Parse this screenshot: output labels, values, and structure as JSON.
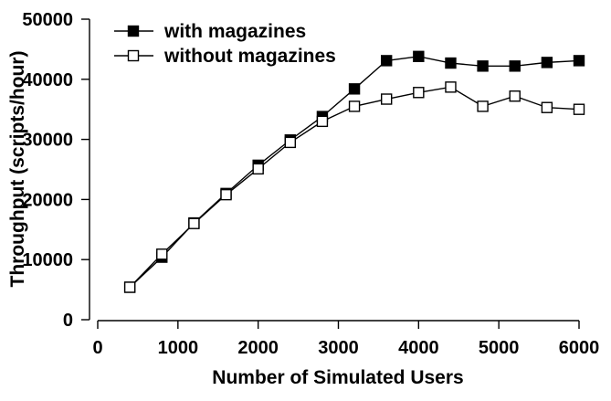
{
  "chart_data": {
    "type": "line",
    "xlabel": "Number of Simulated Users",
    "ylabel": "Throughput (scripts/hour)",
    "xlim": [
      0,
      6000
    ],
    "ylim": [
      0,
      50000
    ],
    "xticks": [
      "0",
      "1000",
      "2000",
      "3000",
      "4000",
      "5000",
      "6000"
    ],
    "yticks": [
      "0",
      "10000",
      "20000",
      "30000",
      "40000",
      "50000"
    ],
    "grid": false,
    "legend_position": "top-left",
    "series": [
      {
        "name": "with magazines",
        "marker": "filled-square",
        "color": "#000000",
        "x": [
          400,
          800,
          1200,
          1600,
          2000,
          2400,
          2800,
          3200,
          3600,
          4000,
          4400,
          4800,
          5200,
          5600,
          6000
        ],
        "y": [
          5400,
          10400,
          16100,
          21000,
          25700,
          29900,
          33800,
          38400,
          43100,
          43800,
          42700,
          42200,
          42200,
          42800,
          43100
        ]
      },
      {
        "name": "without magazines",
        "marker": "open-square",
        "color": "#000000",
        "x": [
          400,
          800,
          1200,
          1600,
          2000,
          2400,
          2800,
          3200,
          3600,
          4000,
          4400,
          4800,
          5200,
          5600,
          6000
        ],
        "y": [
          5400,
          10900,
          16000,
          20800,
          25100,
          29500,
          33000,
          35500,
          36700,
          37800,
          38700,
          35500,
          37200,
          35300,
          35000
        ]
      }
    ]
  }
}
